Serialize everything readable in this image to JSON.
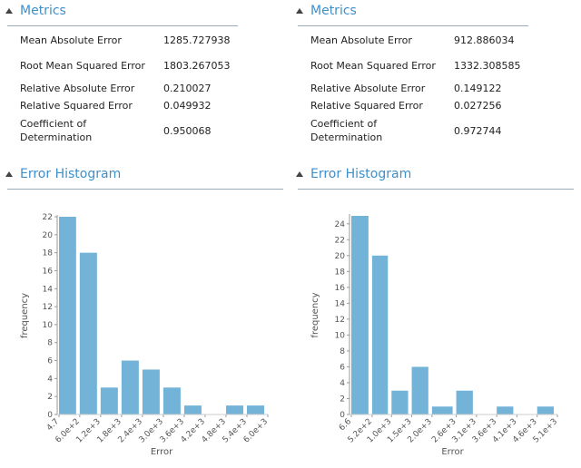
{
  "panels": [
    {
      "metrics": {
        "title": "Metrics",
        "rows": [
          {
            "name": "Mean Absolute Error",
            "value": "1285.727938"
          },
          {
            "name": "Root Mean Squared Error",
            "value": "1803.267053"
          },
          {
            "name": "Relative Absolute Error",
            "value": "0.210027"
          },
          {
            "name": "Relative Squared Error",
            "value": "0.049932"
          },
          {
            "name": "Coefficient of Determination",
            "value": "0.950068"
          }
        ]
      }
    },
    {
      "metrics": {
        "title": "Metrics",
        "rows": [
          {
            "name": "Mean Absolute Error",
            "value": "912.886034"
          },
          {
            "name": "Root Mean Squared Error",
            "value": "1332.308585"
          },
          {
            "name": "Relative Absolute Error",
            "value": "0.149122"
          },
          {
            "name": "Relative Squared Error",
            "value": "0.027256"
          },
          {
            "name": "Coefficient of Determination",
            "value": "0.972744"
          }
        ]
      }
    }
  ],
  "chart_data": [
    {
      "type": "histogram",
      "title": "Error Histogram",
      "x_label": "Error",
      "y_label": "frequency",
      "color": "#74b3d8",
      "bins": [
        4.7,
        {
          "value": 600,
          "label": "6.0e+2"
        },
        {
          "value": 1200,
          "label": "1.2e+3"
        },
        {
          "value": 1800,
          "label": "1.8e+3"
        },
        {
          "value": 2400,
          "label": "2.4e+3"
        },
        {
          "value": 3000,
          "label": "3.0e+3"
        },
        {
          "value": 3600,
          "label": "3.6e+3"
        },
        {
          "value": 4200,
          "label": "4.2e+3"
        },
        {
          "value": 4800,
          "label": "4.8e+3"
        },
        {
          "value": 5400,
          "label": "5.4e+3"
        },
        {
          "value": 6000,
          "label": "6.0e+3"
        }
      ],
      "values": [
        22,
        18,
        3,
        6,
        5,
        3,
        1,
        0,
        1,
        1
      ],
      "xlim": [
        4.7,
        6000
      ],
      "ylim": [
        0,
        22
      ],
      "yticks": [
        0,
        2,
        4,
        6,
        8,
        10,
        12,
        14,
        16,
        18,
        20,
        22
      ]
    },
    {
      "type": "histogram",
      "title": "Error Histogram",
      "x_label": "Error",
      "y_label": "frequency",
      "color": "#74b3d8",
      "bins": [
        6.6,
        {
          "value": 520,
          "label": "5.2e+2"
        },
        {
          "value": 1000,
          "label": "1.0e+3"
        },
        {
          "value": 1500,
          "label": "1.5e+3"
        },
        {
          "value": 2000,
          "label": "2.0e+3"
        },
        {
          "value": 2600,
          "label": "2.6e+3"
        },
        {
          "value": 3100,
          "label": "3.1e+3"
        },
        {
          "value": 3600,
          "label": "3.6e+3"
        },
        {
          "value": 4100,
          "label": "4.1e+3"
        },
        {
          "value": 4600,
          "label": "4.6e+3"
        },
        {
          "value": 5100,
          "label": "5.1e+3"
        }
      ],
      "values": [
        25,
        20,
        3,
        6,
        1,
        3,
        0,
        1,
        0,
        1
      ],
      "xlim": [
        6.6,
        5100
      ],
      "ylim": [
        0,
        25
      ],
      "yticks": [
        0,
        2,
        4,
        6,
        8,
        10,
        12,
        14,
        16,
        18,
        20,
        22,
        24
      ]
    }
  ]
}
